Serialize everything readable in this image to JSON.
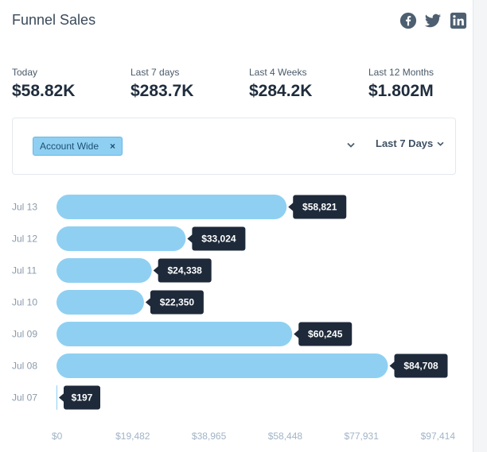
{
  "header": {
    "title": "Funnel Sales",
    "social_icons": [
      "facebook-icon",
      "twitter-icon",
      "linkedin-icon"
    ],
    "icon_color": "#4d5f71"
  },
  "stats": [
    {
      "label": "Today",
      "value": "$58.82K"
    },
    {
      "label": "Last 7 days",
      "value": "$283.7K"
    },
    {
      "label": "Last 4 Weeks",
      "value": "$284.2K"
    },
    {
      "label": "Last 12 Months",
      "value": "$1.802M"
    }
  ],
  "filter": {
    "tag_label": "Account Wide",
    "tag_remove": "×",
    "date_range": "Last 7 Days"
  },
  "colors": {
    "bar": "#8fd0f2",
    "label_bg": "#1e2a3a",
    "label_text": "#ffffff"
  },
  "chart_data": {
    "type": "bar",
    "orientation": "horizontal",
    "categories": [
      "Jul 13",
      "Jul 12",
      "Jul 11",
      "Jul 10",
      "Jul 09",
      "Jul 08",
      "Jul 07"
    ],
    "values": [
      58821,
      33024,
      24338,
      22350,
      60245,
      84708,
      197
    ],
    "value_labels": [
      "$58,821",
      "$33,024",
      "$24,338",
      "$22,350",
      "$60,245",
      "$84,708",
      "$197"
    ],
    "x_ticks": [
      "$0",
      "$19,482",
      "$38,965",
      "$58,448",
      "$77,931",
      "$97,414"
    ],
    "xlim": [
      0,
      97414
    ],
    "grid": false,
    "legend": "none"
  }
}
